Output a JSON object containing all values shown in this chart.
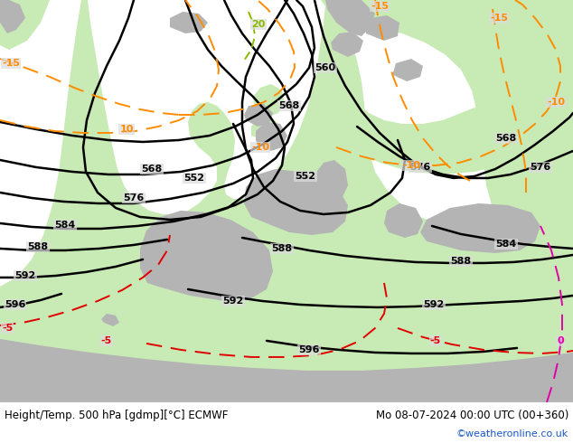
{
  "title_left": "Height/Temp. 500 hPa [gdmp][°C] ECMWF",
  "title_right": "Mo 08-07-2024 00:00 UTC (00+360)",
  "credit": "©weatheronline.co.uk",
  "bg_color": "#dcdcdc",
  "land_green": "#c8eab4",
  "land_gray": "#b4b4b4",
  "sea_color": "#dcdcdc",
  "contour_color": "#000000",
  "temp_orange": "#ff8c00",
  "temp_red": "#e00000",
  "temp_magenta": "#e000aa",
  "temp_yg": "#88bb00",
  "figsize": [
    6.34,
    4.9
  ],
  "dpi": 100
}
